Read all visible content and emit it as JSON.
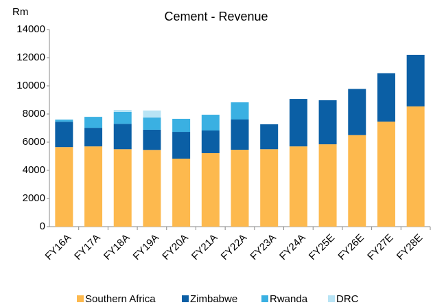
{
  "chart_data": {
    "type": "stacked_bar",
    "title": "Cement - Revenue",
    "y_axis_label": "Rm",
    "categories": [
      "FY16A",
      "FY17A",
      "FY18A",
      "FY19A",
      "FY20A",
      "FY21A",
      "FY22A",
      "FY23A",
      "FY24A",
      "FY25E",
      "FY26E",
      "FY27E",
      "FY28E"
    ],
    "series": [
      {
        "name": "Southern Africa",
        "color": "#fdb94e",
        "values": [
          5650,
          5700,
          5500,
          5450,
          4830,
          5220,
          5460,
          5500,
          5700,
          5850,
          6500,
          7460,
          8540
        ]
      },
      {
        "name": "Zimbabwe",
        "color": "#0b5fa5",
        "values": [
          1800,
          1320,
          1800,
          1430,
          1900,
          1610,
          2150,
          1770,
          3370,
          3130,
          3280,
          3440,
          3660
        ]
      },
      {
        "name": "Rwanda",
        "color": "#3ab0e2",
        "values": [
          150,
          780,
          850,
          870,
          930,
          1120,
          1220,
          null,
          null,
          null,
          null,
          null,
          null
        ]
      },
      {
        "name": "DRC",
        "color": "#b8e4f5",
        "values": [
          null,
          null,
          140,
          500,
          null,
          null,
          null,
          null,
          null,
          null,
          null,
          null,
          null
        ]
      }
    ],
    "ylim": [
      0,
      14000
    ],
    "yticks": [
      0,
      2000,
      4000,
      6000,
      8000,
      10000,
      12000,
      14000
    ],
    "grid": false,
    "legend": "bottom"
  }
}
